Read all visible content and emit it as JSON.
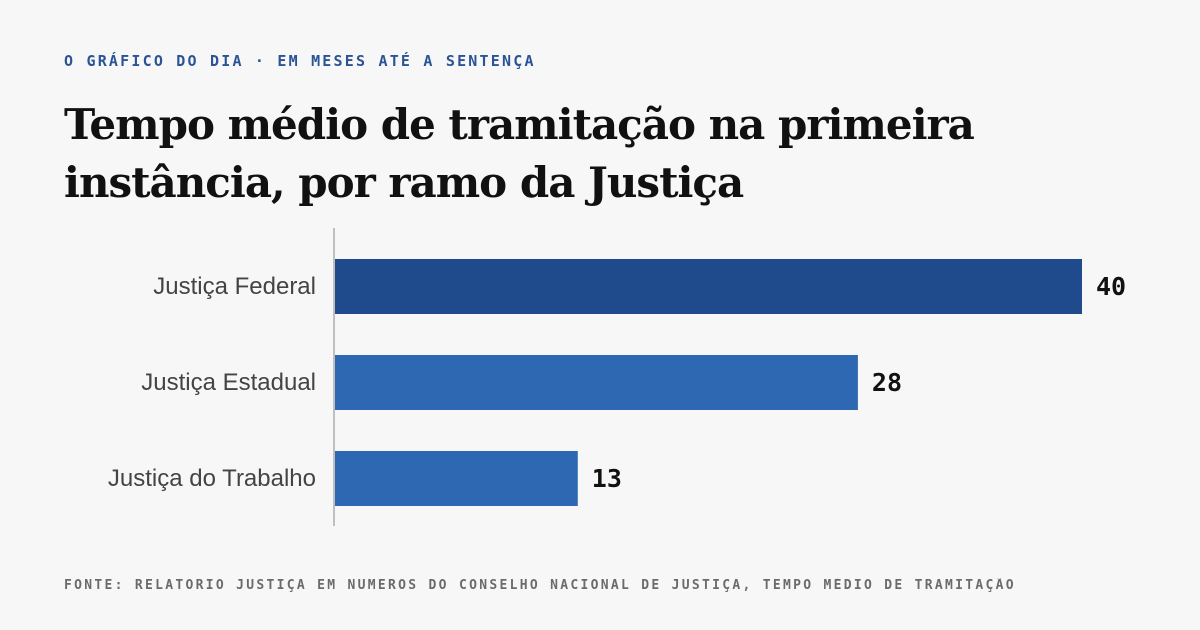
{
  "header": {
    "kicker": "O GRÁFICO DO DIA · EM MESES ATÉ A SENTENÇA",
    "title_line1": "Tempo médio de tramitação na primeira",
    "title_line2": "instância, por ramo da Justiça"
  },
  "footer": {
    "source": "FONTE: RELATÓRIO JUSTIÇA EM NÚMEROS DO CONSELHO NACIONAL DE JUSTIÇA, TEMPO MÉDIO DE TRAMITAÇÃO"
  },
  "colors": {
    "highlight": "#1f4b8c",
    "bar": "#2e68b2",
    "axis": "#bfbfbf",
    "category_text": "#444444",
    "value_text": "#111111"
  },
  "chart_data": {
    "type": "bar",
    "orientation": "horizontal",
    "categories": [
      "Justiça Federal",
      "Justiça Estadual",
      "Justiça do Trabalho"
    ],
    "values": [
      40,
      28,
      13
    ],
    "highlight_index": 0,
    "xlim": [
      0,
      40
    ],
    "grid": false,
    "legend": "none"
  }
}
